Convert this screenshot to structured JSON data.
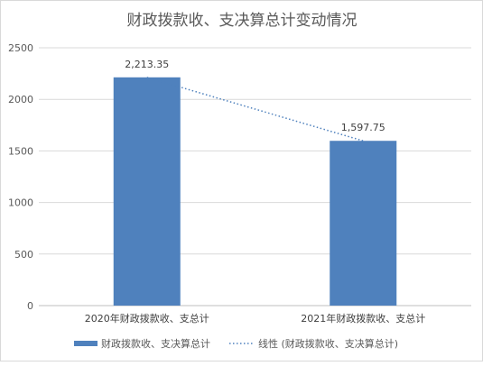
{
  "chart_data": {
    "type": "bar",
    "title": "财政拨款收、支决算总计变动情况",
    "categories": [
      "2020年财政拨款收、支总计",
      "2021年财政拨款收、支总计"
    ],
    "series": [
      {
        "name": "财政拨款收、支决算总计",
        "values": [
          2213.35,
          1597.75
        ],
        "value_labels": [
          "2,213.35",
          "1,597.75"
        ],
        "color": "#4f81bd"
      }
    ],
    "trendline": {
      "name": "线性 (财政拨款收、支决算总计)",
      "type": "linear",
      "color": "#4f81bd"
    },
    "yticks": [
      "0",
      "500",
      "1000",
      "1500",
      "2000",
      "2500"
    ],
    "ylim": [
      0,
      2500
    ],
    "grid": true,
    "legend_position": "bottom"
  }
}
